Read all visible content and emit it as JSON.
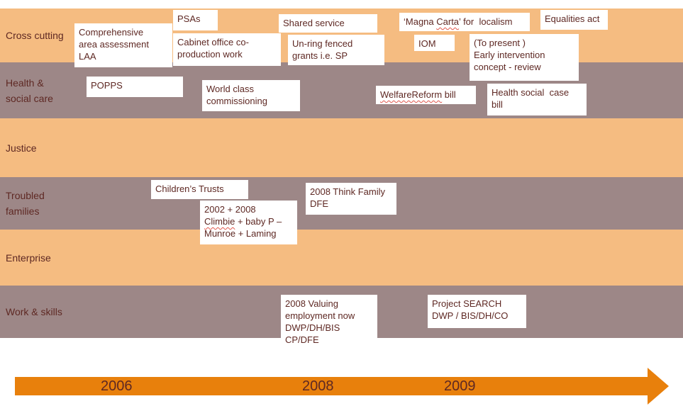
{
  "rows": [
    {
      "id": "cross-cutting",
      "label": "Cross cutting"
    },
    {
      "id": "health-social-care",
      "label": "Health &\nsocial care"
    },
    {
      "id": "justice",
      "label": "Justice"
    },
    {
      "id": "troubled-families",
      "label": "Troubled\nfamilies"
    },
    {
      "id": "enterprise",
      "label": "Enterprise"
    },
    {
      "id": "work-skills",
      "label": "Work & skills"
    }
  ],
  "boxes": {
    "comprehensive": {
      "text": "Comprehensive\narea assessment\nLAA"
    },
    "psas": {
      "text": "PSAs"
    },
    "cabinet": {
      "text": "Cabinet office co-\nproduction work"
    },
    "shared_service": {
      "text": "Shared service"
    },
    "unring": {
      "text": "Un-ring fenced\ngrants i.e. SP"
    },
    "magna": {
      "text": "‘Magna Carta’ for  localism",
      "squiggle": [
        "Carta"
      ]
    },
    "iom": {
      "text": "IOM"
    },
    "to_present": {
      "text": "(To present )\nEarly intervention\nconcept - review"
    },
    "equalities": {
      "text": "Equalities act"
    },
    "popps": {
      "text": "POPPS"
    },
    "world_class": {
      "text": "World class\ncommissioning"
    },
    "welfare": {
      "text": "WelfareReform bill",
      "squiggle": [
        "WelfareReform"
      ]
    },
    "health_bill": {
      "text": "Health social  case\nbill"
    },
    "childrens_trusts": {
      "text": "Children’s Trusts"
    },
    "climbie": {
      "text": "2002 + 2008\nClimbie + baby P –\nMunroe + Laming",
      "squiggle": [
        "Climbie"
      ]
    },
    "think_family": {
      "text": "2008 Think Family\nDFE"
    },
    "valuing": {
      "text": "2008 Valuing\nemployment now\nDWP/DH/BIS\nCP/DFE"
    },
    "project_search": {
      "text": "Project SEARCH\nDWP / BIS/DH/CO"
    }
  },
  "timeline": {
    "years": [
      "2006",
      "2008",
      "2009"
    ]
  },
  "colors": {
    "band_orange": "#F5BC81",
    "band_mauve": "#9D8787",
    "arrow_orange": "#E8800C",
    "text_maroon": "#5E2823",
    "squiggle_red": "#E2574C"
  }
}
